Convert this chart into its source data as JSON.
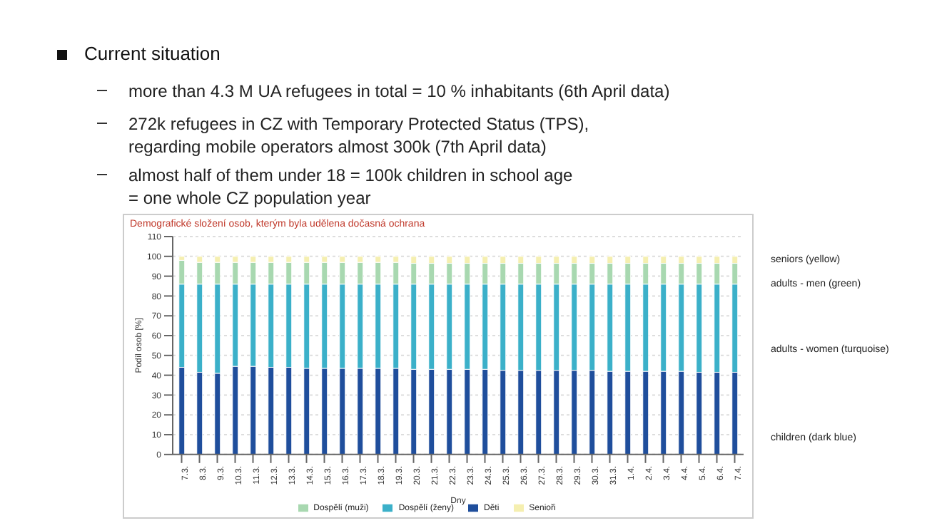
{
  "chart_data": {
    "type": "bar",
    "title": "Demografické složení osob, kterým byla udělena dočasná ochrana",
    "xlabel": "Dny",
    "ylabel": "Podíl osob [%]",
    "categories": [
      "7.3.",
      "8.3.",
      "9.3.",
      "10.3.",
      "11.3.",
      "12.3.",
      "13.3.",
      "14.3.",
      "15.3.",
      "16.3.",
      "17.3.",
      "18.3.",
      "19.3.",
      "20.3.",
      "21.3.",
      "22.3.",
      "23.3.",
      "24.3.",
      "25.3.",
      "26.3.",
      "27.3.",
      "28.3.",
      "29.3.",
      "30.3.",
      "31.3.",
      "1.4.",
      "2.4.",
      "3.4.",
      "4.4.",
      "5.4.",
      "6.4.",
      "7.4."
    ],
    "stacked": true,
    "series": [
      {
        "name": "Děti",
        "color": "#1f4e9c",
        "values": [
          44,
          41.5,
          41,
          44.5,
          44.5,
          44,
          44,
          43.5,
          43.5,
          43.5,
          43.5,
          43.5,
          43.5,
          43,
          43,
          43,
          43,
          43,
          42.5,
          42.5,
          42.5,
          42.5,
          42.5,
          42.5,
          42,
          42,
          42,
          42,
          42,
          41.5,
          41.5,
          41.5
        ]
      },
      {
        "name": "Dospělí (ženy)",
        "color": "#3bb0c9",
        "values": [
          42,
          44.5,
          45,
          41.5,
          41.5,
          42,
          42,
          42.5,
          42.5,
          42.5,
          42.5,
          42.5,
          42.5,
          43,
          43,
          43,
          43,
          43,
          43.5,
          43.5,
          43.5,
          43.5,
          43.5,
          43.5,
          44,
          44,
          44,
          44,
          44,
          44.5,
          44.5,
          44.5
        ]
      },
      {
        "name": "Dospělí (muži)",
        "color": "#a8d8b0",
        "values": [
          12,
          11,
          11,
          11,
          11,
          11,
          11,
          11,
          11,
          11,
          11,
          11,
          11,
          10.5,
          10.5,
          10.5,
          10.5,
          10.5,
          10.5,
          10.5,
          10.5,
          10.5,
          10.5,
          10.5,
          10.5,
          10.5,
          10.5,
          10.5,
          10.5,
          10.5,
          10.5,
          10.5
        ]
      },
      {
        "name": "Senioři",
        "color": "#f5efb0",
        "values": [
          2,
          3,
          3,
          3,
          3,
          3,
          3,
          3,
          3,
          3,
          3,
          3,
          3,
          3.5,
          3.5,
          3.5,
          3.5,
          3.5,
          3.5,
          3.5,
          3.5,
          3.5,
          3.5,
          3.5,
          3.5,
          3.5,
          3.5,
          3.5,
          3.5,
          3.5,
          3.5,
          3.5
        ]
      }
    ],
    "ylim": [
      0,
      110
    ],
    "yticks": [
      0,
      10,
      20,
      30,
      40,
      50,
      60,
      70,
      80,
      90,
      100,
      110
    ],
    "grid": "y",
    "legend": "bottom",
    "annotations": [
      "Current situation",
      "more than 4.3 M UA refugees in total = 10 % inhabitants (6th April data)",
      "272k refugees in CZ with Temporary Protected Status (TPS),\nregarding mobile operators almost 300k (7th April data)",
      "almost half of them under 18 = 100k children in school age\n= one whole CZ population year",
      "seniors (yellow)",
      "adults - men (green)",
      "adults - women (turquoise)",
      "children (dark blue)"
    ]
  }
}
